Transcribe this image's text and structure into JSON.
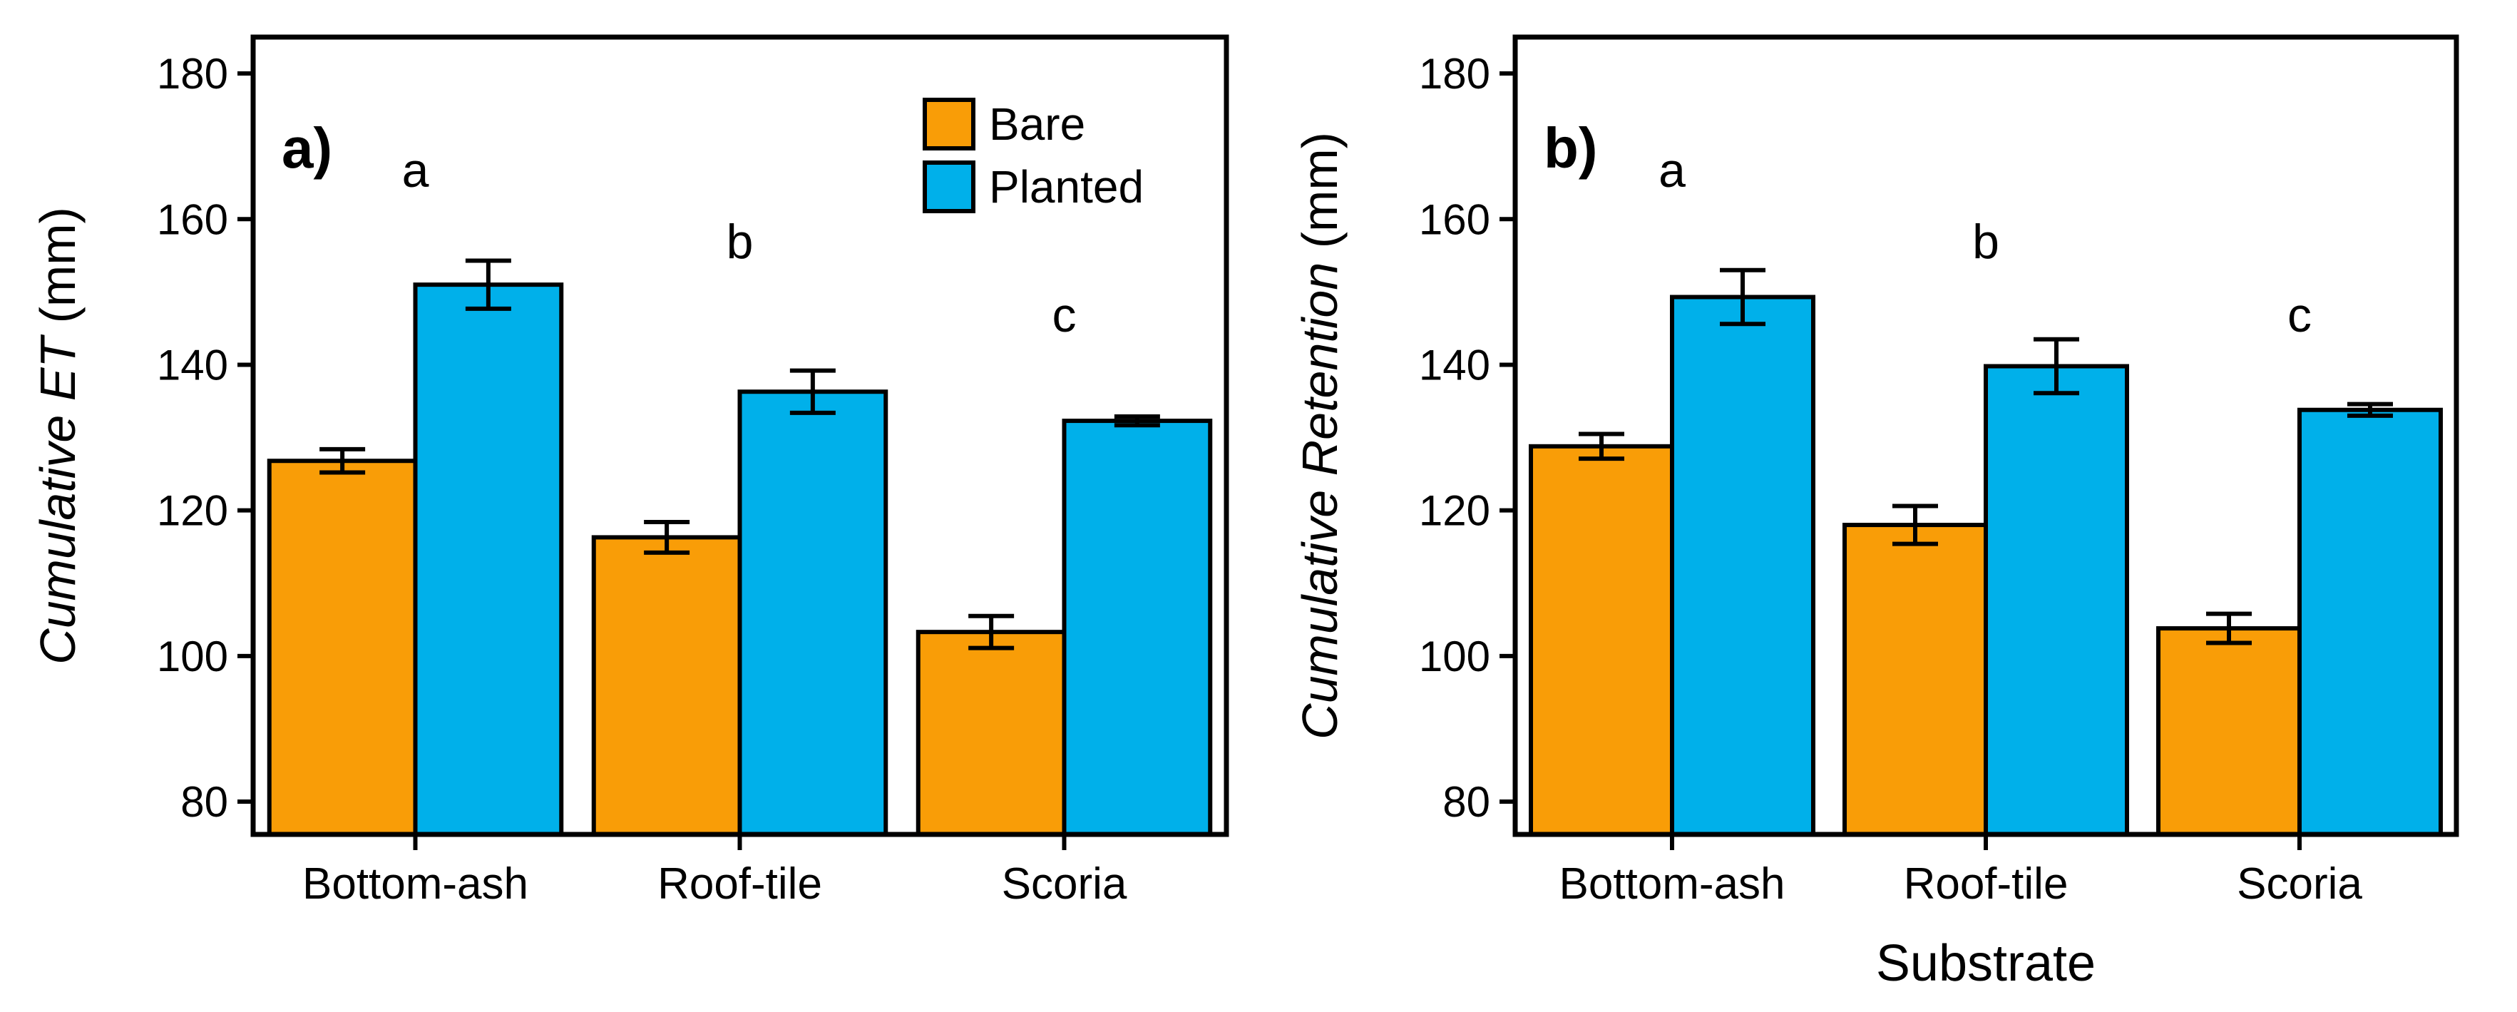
{
  "colors": {
    "bare": "#F99D07",
    "planted": "#00B0EA",
    "axis": "#000000"
  },
  "legend": {
    "items": [
      {
        "label": "Bare",
        "color_key": "bare"
      },
      {
        "label": "Planted",
        "color_key": "planted"
      }
    ],
    "placement": "top-right of panel a"
  },
  "chart_data": [
    {
      "type": "bar",
      "panel_label": "a)",
      "title": "",
      "xlabel": "",
      "ylabel_italic": "Cumulative ET",
      "ylabel_unit": " (mm)",
      "categories": [
        "Bottom-ash",
        "Roof-tile",
        "Scoria"
      ],
      "series": [
        {
          "name": "Bare",
          "values": [
            126.8,
            116.3,
            103.3
          ],
          "errors": [
            1.6,
            2.1,
            2.2
          ]
        },
        {
          "name": "Planted",
          "values": [
            151.0,
            136.3,
            132.3
          ],
          "errors": [
            3.3,
            2.9,
            0.6
          ]
        }
      ],
      "letters": [
        "a",
        "b",
        "c"
      ],
      "ylim": [
        75.5,
        185
      ],
      "yticks": [
        80,
        100,
        120,
        140,
        160,
        180
      ],
      "grid": false
    },
    {
      "type": "bar",
      "panel_label": "b)",
      "title": "",
      "xlabel": "Substrate",
      "ylabel_italic": "Cumulative Retention",
      "ylabel_unit": " (mm)",
      "categories": [
        "Bottom-ash",
        "Roof-tile",
        "Scoria"
      ],
      "series": [
        {
          "name": "Bare",
          "values": [
            128.8,
            118.0,
            103.8
          ],
          "errors": [
            1.7,
            2.6,
            2.0
          ]
        },
        {
          "name": "Planted",
          "values": [
            149.3,
            139.8,
            133.8
          ],
          "errors": [
            3.7,
            3.7,
            0.8
          ]
        }
      ],
      "letters": [
        "a",
        "b",
        "c"
      ],
      "ylim": [
        75.5,
        185
      ],
      "yticks": [
        80,
        100,
        120,
        140,
        160,
        180
      ],
      "grid": false
    }
  ]
}
